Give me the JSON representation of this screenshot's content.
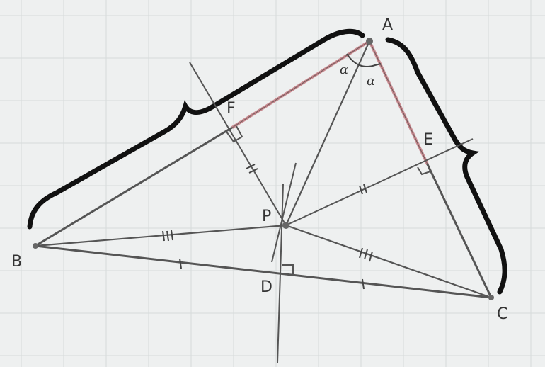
{
  "points": {
    "A": "A",
    "B": "B",
    "C": "C",
    "D": "D",
    "E": "E",
    "F": "F",
    "P": "P"
  },
  "angle_marks": {
    "left": "α",
    "right": "α"
  },
  "colors": {
    "paper": "#eef0f0",
    "grid": "#d6dada",
    "ink": "#4a4a4a",
    "red_segment": "#c98a90",
    "brace": "#111111"
  },
  "tick_marks": {
    "PF": 2,
    "PE": 2,
    "PB": 3,
    "PC": 3,
    "BD": 1,
    "DC": 1
  }
}
